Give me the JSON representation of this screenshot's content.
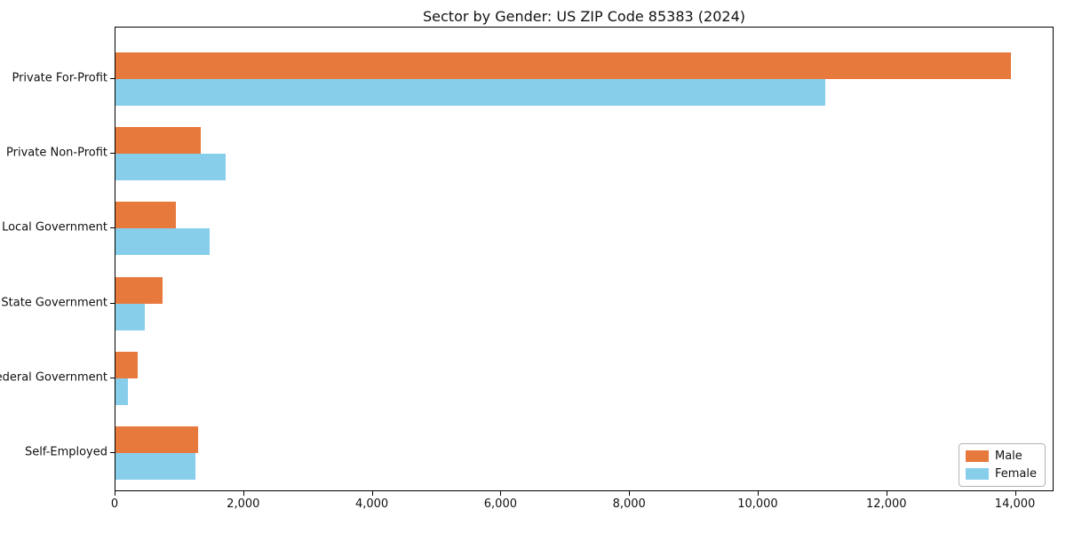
{
  "chart_data": {
    "type": "bar",
    "orientation": "horizontal",
    "title": "Sector by Gender: US ZIP Code 85383 (2024)",
    "categories": [
      "Private For-Profit",
      "Private Non-Profit",
      "Local Government",
      "State Government",
      "Federal Government",
      "Self-Employed"
    ],
    "series": [
      {
        "name": "Male",
        "color": "#E8793D",
        "values": [
          13920,
          1320,
          940,
          730,
          350,
          1290
        ]
      },
      {
        "name": "Female",
        "color": "#87CEEB",
        "values": [
          11030,
          1710,
          1470,
          460,
          190,
          1250
        ]
      }
    ],
    "xlabel": "",
    "ylabel": "",
    "xlim": [
      0,
      14600
    ],
    "xticks": {
      "values": [
        0,
        2000,
        4000,
        6000,
        8000,
        10000,
        12000,
        14000
      ],
      "labels": [
        "0",
        "2,000",
        "4,000",
        "6,000",
        "8,000",
        "10,000",
        "12,000",
        "14,000"
      ]
    },
    "grid": false,
    "legend": {
      "position": "lower right"
    }
  }
}
